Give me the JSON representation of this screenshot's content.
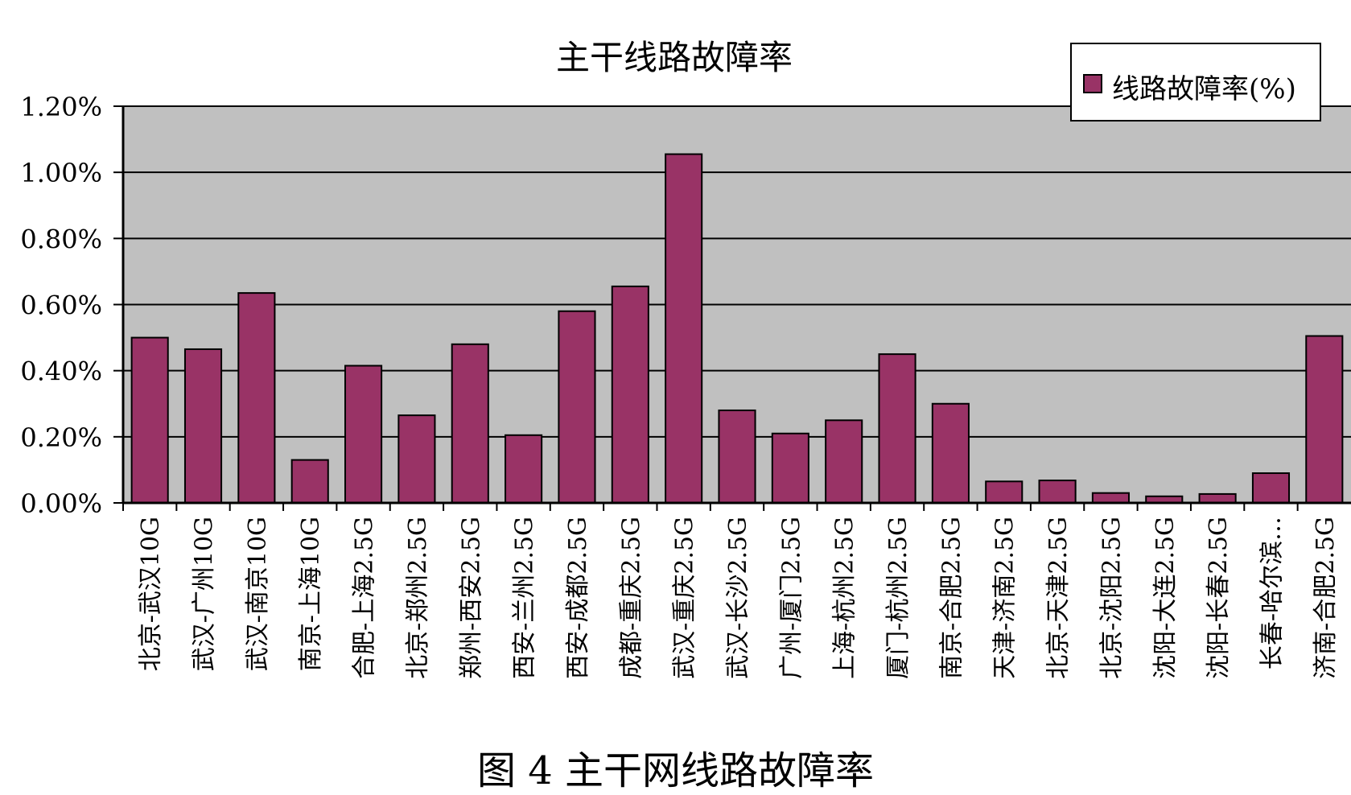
{
  "chart_data": {
    "type": "bar",
    "title": "主干线路故障率",
    "categories": [
      "北京-武汉10G",
      "武汉-广州10G",
      "武汉-南京10G",
      "南京-上海10G",
      "合肥-上海2.5G",
      "北京-郑州2.5G",
      "郑州-西安2.5G",
      "西安-兰州2.5G",
      "西安-成都2.5G",
      "成都-重庆2.5G",
      "武汉-重庆2.5G",
      "武汉-长沙2.5G",
      "广州-厦门2.5G",
      "上海-杭州2.5G",
      "厦门-杭州2.5G",
      "南京-合肥2.5G",
      "天津-济南2.5G",
      "北京-天津2.5G",
      "北京-沈阳2.5G",
      "沈阳-大连2.5G",
      "沈阳-长春2.5G",
      "长春-哈尔滨…",
      "济南-合肥2.5G"
    ],
    "series": [
      {
        "name": "线路故障率(%)",
        "values": [
          0.5,
          0.465,
          0.635,
          0.13,
          0.415,
          0.265,
          0.48,
          0.205,
          0.58,
          0.655,
          1.055,
          0.28,
          0.21,
          0.25,
          0.45,
          0.3,
          0.065,
          0.068,
          0.03,
          0.02,
          0.027,
          0.09,
          0.505
        ]
      }
    ],
    "ylim": [
      0,
      1.2
    ],
    "yticks": [
      "0.00%",
      "0.20%",
      "0.40%",
      "0.60%",
      "0.80%",
      "1.00%",
      "1.20%"
    ],
    "grid": true,
    "legend_position": "top-right",
    "colors": {
      "bar": "#993366",
      "plot_background": "#c0c0c0",
      "gridline": "#000000"
    }
  },
  "caption": "图 4  主干网线路故障率"
}
